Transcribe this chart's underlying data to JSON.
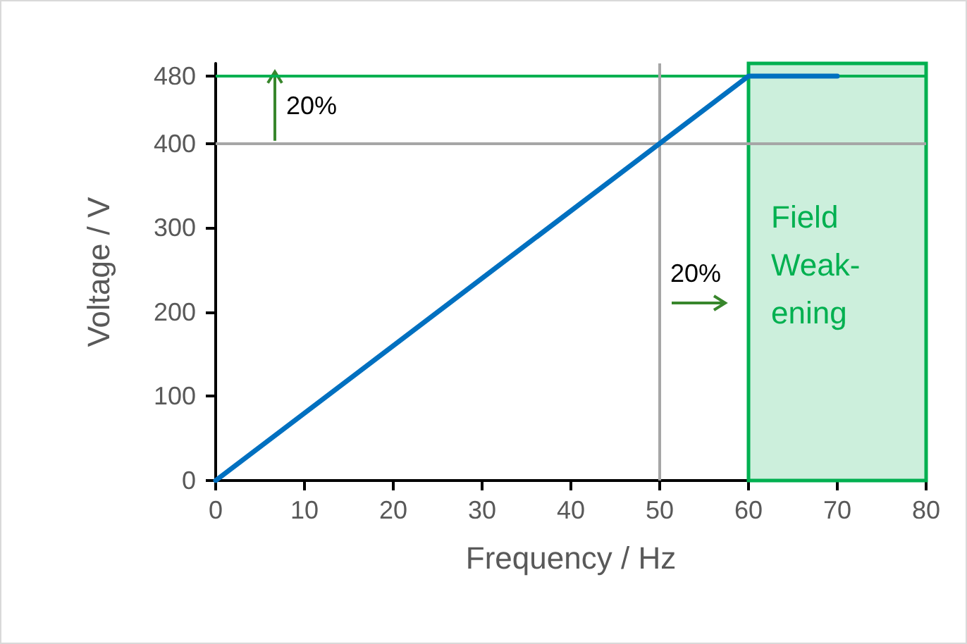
{
  "chart_data": {
    "type": "line",
    "xlabel": "Frequency / Hz",
    "ylabel": "Voltage / V",
    "x": [
      0,
      60,
      70
    ],
    "series": [
      {
        "color": "#0070c0",
        "values": [
          0,
          480,
          480
        ]
      }
    ],
    "xlim": [
      0,
      80
    ],
    "xticks": [
      0,
      10,
      20,
      30,
      40,
      50,
      60,
      70,
      80
    ],
    "ylim": [
      0,
      495
    ],
    "yticks": [
      0,
      100,
      200,
      300,
      400,
      480
    ],
    "grid": false,
    "marker": "none",
    "line_style": "solid",
    "ref_lines": [
      {
        "axis": "y",
        "value": 400,
        "color": "#a6a6a6"
      },
      {
        "axis": "y",
        "value": 480,
        "color": "#00b050"
      },
      {
        "axis": "x",
        "value": 50,
        "color": "#a6a6a6"
      }
    ],
    "bands": [
      {
        "axis": "x",
        "from": 60,
        "to": 81,
        "label": "Field Weak-ening",
        "color": "#00b050"
      }
    ],
    "annotations": [
      "20%",
      "20%"
    ]
  }
}
